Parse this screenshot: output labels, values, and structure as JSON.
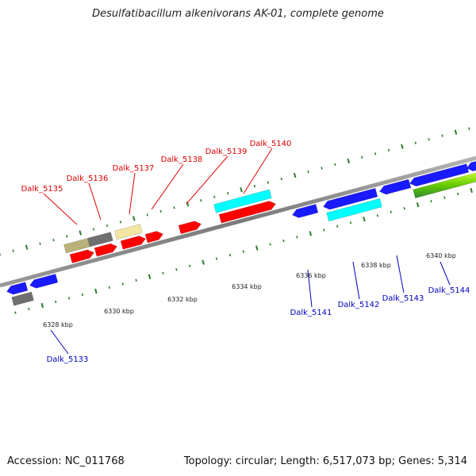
{
  "title": "Desulfatibacillum alkenivorans AK-01, complete genome",
  "footer": {
    "accession": "Accession: NC_011768",
    "summary": "Topology: circular; Length: 6,517,073 bp; Genes: 5,314"
  },
  "colors": {
    "backbone": "#8c8c8c",
    "forward_label": "#e00000",
    "reverse_label": "#0000c0",
    "tick": "#2a7d2a",
    "red": "#ff0000",
    "blue": "#1a1aff",
    "cyan": "#00ffff",
    "khaki": "#b9b07a",
    "gray": "#6f6f6f",
    "cream": "#f3e6a0",
    "green": "#66cc00"
  },
  "tick_labels": [
    "6328 kbp",
    "6330 kbp",
    "6332 kbp",
    "6334 kbp",
    "6336 kbp",
    "6338 kbp",
    "6340 kbp"
  ],
  "forward_genes": [
    "Dalk_5135",
    "Dalk_5136",
    "Dalk_5137",
    "Dalk_5138",
    "Dalk_5139",
    "Dalk_5140"
  ],
  "reverse_genes": [
    "Dalk_5133",
    "Dalk_5141",
    "Dalk_5142",
    "Dalk_5143",
    "Dalk_5144"
  ]
}
